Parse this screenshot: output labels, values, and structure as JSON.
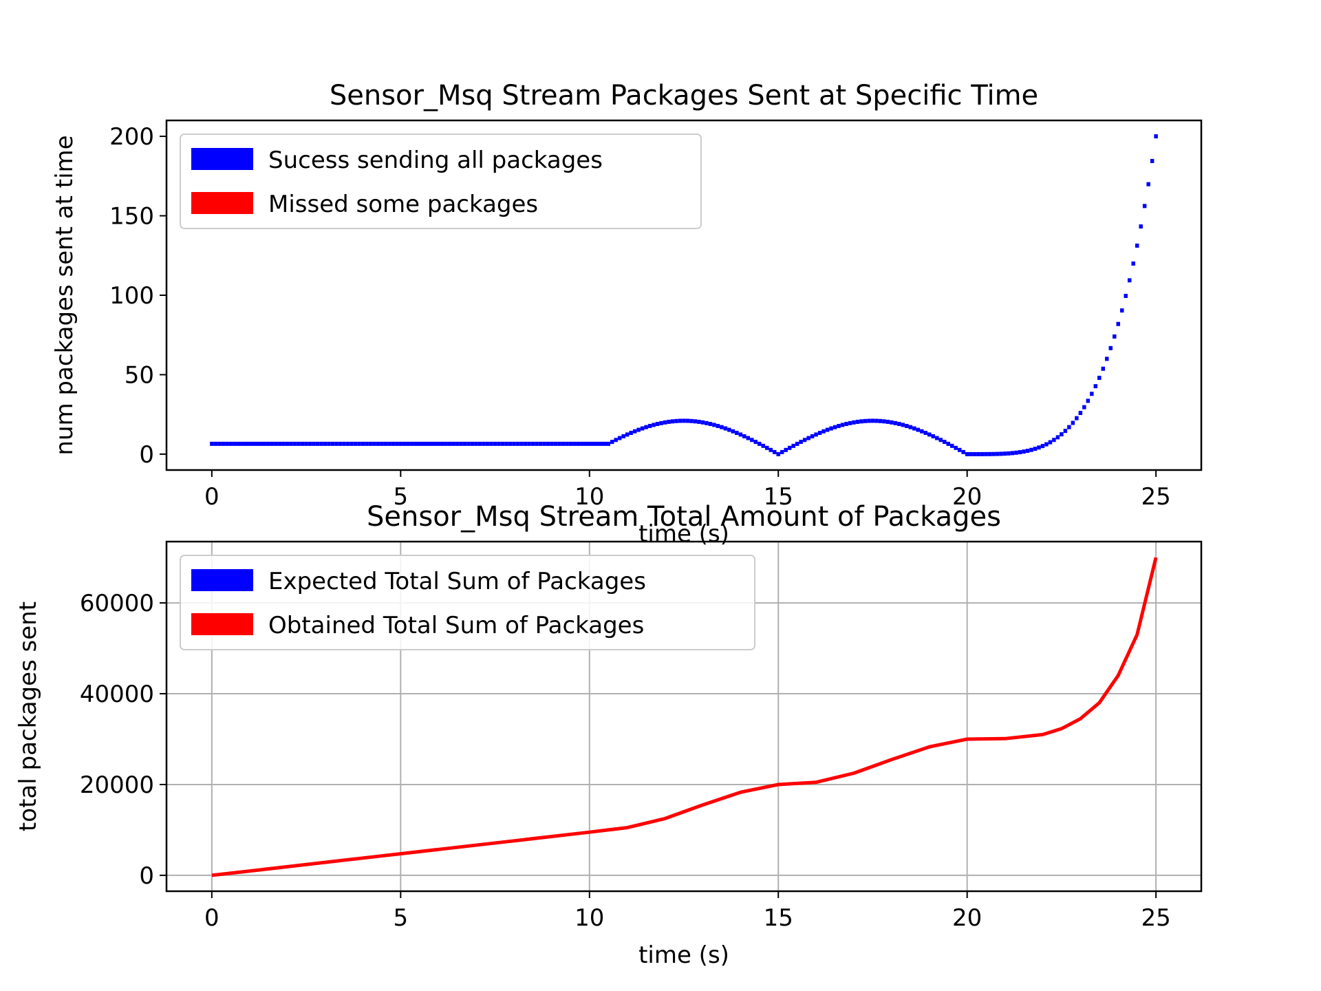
{
  "chart_data": [
    {
      "type": "bar",
      "title": "Sensor_Msq Stream Packages Sent at Specific Time",
      "xlabel": "time (s)",
      "ylabel": "num packages sent at time",
      "xlim": [
        -1.2,
        26.2
      ],
      "ylim": [
        -10,
        210
      ],
      "xticks": [
        0,
        5,
        10,
        15,
        20,
        25
      ],
      "yticks": [
        0,
        50,
        100,
        150,
        200
      ],
      "grid": false,
      "legend_position": "upper-left",
      "legend": [
        {
          "label": "Sucess sending all packages",
          "color": "#0000ff"
        },
        {
          "label": "Missed some packages",
          "color": "#ff0000"
        }
      ],
      "series": [
        {
          "color": "#0000ff",
          "segments": [
            {
              "x_start": 0,
              "x_end": 10.5,
              "y": 6.5
            },
            {
              "x_start": 10.5,
              "x_end": 20.0,
              "y_shape": "abs-sine",
              "peak": 21,
              "period": 10
            },
            {
              "x_start": 20.0,
              "x_end": 25.0,
              "y_shape": "power",
              "y_start": 0,
              "y_end": 200,
              "exponent": 4
            }
          ]
        }
      ]
    },
    {
      "type": "line",
      "title": "Sensor_Msq Stream Total Amount of Packages",
      "xlabel": "time (s)",
      "ylabel": "total packages sent",
      "xlim": [
        -1.2,
        26.2
      ],
      "ylim": [
        -3500,
        73500
      ],
      "xticks": [
        0,
        5,
        10,
        15,
        20,
        25
      ],
      "yticks": [
        0,
        20000,
        40000,
        60000
      ],
      "grid": true,
      "legend_position": "upper-left",
      "legend": [
        {
          "label": "Expected Total Sum of Packages",
          "color": "#0000ff"
        },
        {
          "label": "Obtained Total Sum of Packages",
          "color": "#ff0000"
        }
      ],
      "series": [
        {
          "color": "#ff0000",
          "x": [
            0,
            2,
            4,
            6,
            8,
            10,
            10.5,
            11,
            12,
            13,
            14,
            15,
            16,
            17,
            18,
            19,
            20,
            21,
            22,
            22.5,
            23,
            23.5,
            24,
            24.5,
            25
          ],
          "y": [
            0,
            1900,
            3800,
            5700,
            7600,
            9500,
            10000,
            10500,
            12500,
            15500,
            18300,
            20000,
            20500,
            22500,
            25500,
            28300,
            30000,
            30100,
            31000,
            32300,
            34500,
            38000,
            44000,
            53000,
            70000
          ]
        }
      ]
    }
  ]
}
